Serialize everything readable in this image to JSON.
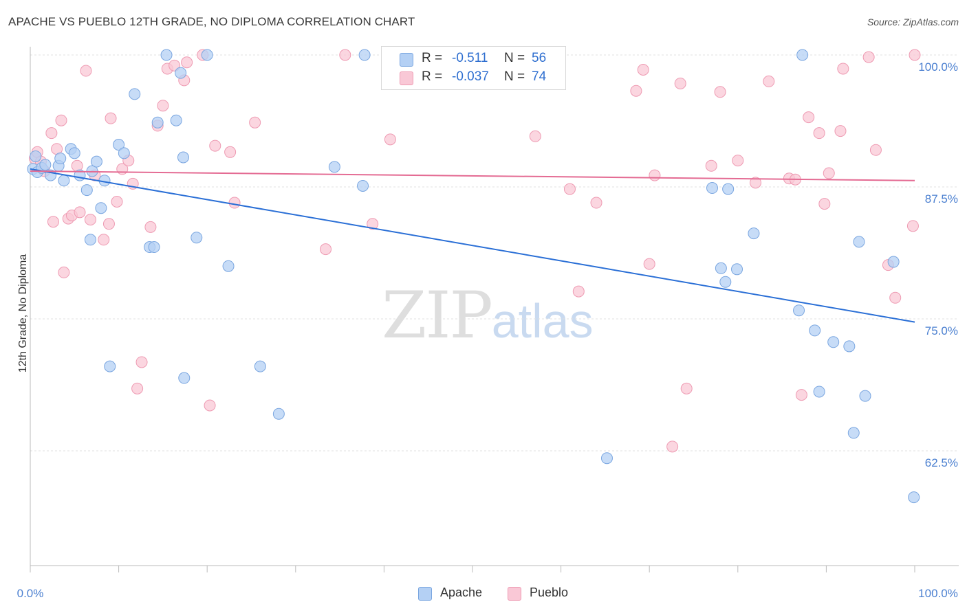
{
  "header": {
    "title": "APACHE VS PUEBLO 12TH GRADE, NO DIPLOMA CORRELATION CHART",
    "source": "Source: ZipAtlas.com"
  },
  "watermark": {
    "zip": "ZIP",
    "atlas": "atlas"
  },
  "legend": {
    "apache": {
      "r_label": "R =",
      "r_value": "-0.511",
      "n_label": "N =",
      "n_value": "56"
    },
    "pueblo": {
      "r_label": "R =",
      "r_value": "-0.037",
      "n_label": "N =",
      "n_value": "74"
    }
  },
  "bottom_legend": {
    "apache": "Apache",
    "pueblo": "Pueblo"
  },
  "colors": {
    "apache_fill": "#b4d0f4",
    "apache_stroke": "#7aa6e0",
    "apache_line": "#2a6fd6",
    "pueblo_fill": "#f9c8d6",
    "pueblo_stroke": "#ee9ab2",
    "pueblo_line": "#e46b93",
    "tick_text": "#4a7fd0",
    "grid": "#e0e0e0"
  },
  "chart_data": {
    "type": "scatter",
    "title": "APACHE VS PUEBLO 12TH GRADE, NO DIPLOMA CORRELATION CHART",
    "xlabel": "",
    "ylabel": "12th Grade, No Diploma",
    "xlim": [
      0,
      100
    ],
    "ylim": [
      51,
      101
    ],
    "x_tick_labels": [
      "0.0%",
      "100.0%"
    ],
    "y_ticks": [
      100.0,
      87.5,
      75.0,
      62.5
    ],
    "y_tick_labels": [
      "100.0%",
      "87.5%",
      "75.0%",
      "62.5%"
    ],
    "grid": true,
    "legend_position": "top-center",
    "series": [
      {
        "name": "Apache",
        "trend": [
          [
            0,
            89.2
          ],
          [
            100,
            74.7
          ]
        ],
        "points": [
          [
            0.3,
            89.2
          ],
          [
            0.6,
            90.4
          ],
          [
            0.8,
            88.9
          ],
          [
            1.3,
            89.3
          ],
          [
            1.7,
            89.6
          ],
          [
            2.3,
            88.6
          ],
          [
            3.2,
            89.5
          ],
          [
            3.4,
            90.2
          ],
          [
            3.8,
            88.1
          ],
          [
            4.6,
            91.1
          ],
          [
            5.0,
            90.7
          ],
          [
            5.6,
            88.6
          ],
          [
            6.4,
            87.2
          ],
          [
            6.8,
            82.5
          ],
          [
            7.0,
            89.0
          ],
          [
            7.5,
            89.9
          ],
          [
            8.0,
            85.5
          ],
          [
            8.4,
            88.1
          ],
          [
            9.0,
            70.5
          ],
          [
            10.0,
            91.5
          ],
          [
            10.6,
            90.7
          ],
          [
            11.8,
            96.3
          ],
          [
            13.5,
            81.8
          ],
          [
            14.0,
            81.8
          ],
          [
            14.4,
            93.6
          ],
          [
            15.4,
            100.0
          ],
          [
            16.5,
            93.8
          ],
          [
            17.0,
            98.3
          ],
          [
            17.3,
            90.3
          ],
          [
            17.4,
            69.4
          ],
          [
            18.8,
            82.7
          ],
          [
            20.0,
            100.0
          ],
          [
            22.4,
            80.0
          ],
          [
            26.0,
            70.5
          ],
          [
            28.1,
            66.0
          ],
          [
            34.4,
            89.4
          ],
          [
            37.6,
            87.6
          ],
          [
            37.8,
            100.0
          ],
          [
            65.2,
            61.8
          ],
          [
            77.1,
            87.4
          ],
          [
            78.9,
            87.3
          ],
          [
            78.6,
            78.5
          ],
          [
            78.1,
            79.8
          ],
          [
            79.9,
            79.7
          ],
          [
            81.8,
            83.1
          ],
          [
            87.3,
            100.0
          ],
          [
            86.9,
            75.8
          ],
          [
            88.7,
            73.9
          ],
          [
            89.2,
            68.1
          ],
          [
            90.8,
            72.8
          ],
          [
            92.6,
            72.4
          ],
          [
            93.1,
            64.2
          ],
          [
            93.7,
            82.3
          ],
          [
            94.4,
            67.7
          ],
          [
            97.6,
            80.4
          ],
          [
            99.9,
            58.1
          ]
        ]
      },
      {
        "name": "Pueblo",
        "trend": [
          [
            0,
            89.0
          ],
          [
            100,
            88.1
          ]
        ],
        "points": [
          [
            0.5,
            90.2
          ],
          [
            0.8,
            90.8
          ],
          [
            1.2,
            89.9
          ],
          [
            1.6,
            89.0
          ],
          [
            2.4,
            92.6
          ],
          [
            2.6,
            84.2
          ],
          [
            3.0,
            91.1
          ],
          [
            3.5,
            93.8
          ],
          [
            3.8,
            79.4
          ],
          [
            4.3,
            84.5
          ],
          [
            4.7,
            84.8
          ],
          [
            5.3,
            89.5
          ],
          [
            5.6,
            85.1
          ],
          [
            6.3,
            98.5
          ],
          [
            6.8,
            84.4
          ],
          [
            7.3,
            88.6
          ],
          [
            8.3,
            82.5
          ],
          [
            8.9,
            84.0
          ],
          [
            9.1,
            94.0
          ],
          [
            9.8,
            86.1
          ],
          [
            10.4,
            89.2
          ],
          [
            11.1,
            90.0
          ],
          [
            11.6,
            87.8
          ],
          [
            12.1,
            68.4
          ],
          [
            12.6,
            70.9
          ],
          [
            13.6,
            83.7
          ],
          [
            14.4,
            93.3
          ],
          [
            15.0,
            95.2
          ],
          [
            15.5,
            98.7
          ],
          [
            16.3,
            99.0
          ],
          [
            17.4,
            97.6
          ],
          [
            17.7,
            99.3
          ],
          [
            19.5,
            100.0
          ],
          [
            20.3,
            66.8
          ],
          [
            20.9,
            91.4
          ],
          [
            22.6,
            90.8
          ],
          [
            23.1,
            86.0
          ],
          [
            25.4,
            93.6
          ],
          [
            33.4,
            81.6
          ],
          [
            35.6,
            100.0
          ],
          [
            38.7,
            84.0
          ],
          [
            40.7,
            92.0
          ],
          [
            41.8,
            100.0
          ],
          [
            57.1,
            92.3
          ],
          [
            61.0,
            87.3
          ],
          [
            62.0,
            77.6
          ],
          [
            64.0,
            86.0
          ],
          [
            68.5,
            96.6
          ],
          [
            69.3,
            98.6
          ],
          [
            70.0,
            80.2
          ],
          [
            70.6,
            88.6
          ],
          [
            72.6,
            62.9
          ],
          [
            73.5,
            97.3
          ],
          [
            74.2,
            68.4
          ],
          [
            77.0,
            89.5
          ],
          [
            78.0,
            96.5
          ],
          [
            80.0,
            90.0
          ],
          [
            82.0,
            87.9
          ],
          [
            83.5,
            97.5
          ],
          [
            85.8,
            88.3
          ],
          [
            86.5,
            88.2
          ],
          [
            87.2,
            67.8
          ],
          [
            88.0,
            94.1
          ],
          [
            89.2,
            92.6
          ],
          [
            89.8,
            85.9
          ],
          [
            90.3,
            88.8
          ],
          [
            91.6,
            92.8
          ],
          [
            91.9,
            98.7
          ],
          [
            94.8,
            99.8
          ],
          [
            95.6,
            91.0
          ],
          [
            97.0,
            80.1
          ],
          [
            97.8,
            77.0
          ],
          [
            99.8,
            83.8
          ],
          [
            100.0,
            100.0
          ]
        ]
      }
    ]
  }
}
